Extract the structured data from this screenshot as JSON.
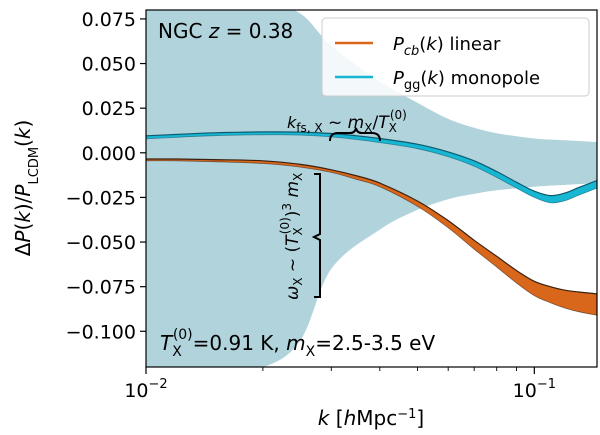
{
  "chart_data": {
    "type": "line",
    "x_scale": "log",
    "xlim": [
      0.01,
      0.145
    ],
    "ylim": [
      -0.12,
      0.08
    ],
    "xlabel_html": "k  [hMpc⁻¹]",
    "ylabel_html": "ΔP(k)/P_LCDM(k)",
    "x_ticks": [
      {
        "value": 0.01,
        "label": "10",
        "exp": "−2"
      },
      {
        "value": 0.1,
        "label": "10",
        "exp": "−1"
      }
    ],
    "y_ticks": [
      {
        "value": 0.075,
        "label": "0.075"
      },
      {
        "value": 0.05,
        "label": "0.050"
      },
      {
        "value": 0.025,
        "label": "0.025"
      },
      {
        "value": 0.0,
        "label": "0.000"
      },
      {
        "value": -0.025,
        "label": "−0.025"
      },
      {
        "value": -0.05,
        "label": "−0.050"
      },
      {
        "value": -0.075,
        "label": "−0.075"
      },
      {
        "value": -0.1,
        "label": "−0.100"
      }
    ],
    "band": {
      "color": "#b0d3dc",
      "x": [
        0.01,
        0.012,
        0.015,
        0.02,
        0.025,
        0.03,
        0.04,
        0.05,
        0.06,
        0.07,
        0.08,
        0.1,
        0.12,
        0.145
      ],
      "upper": [
        0.085,
        0.085,
        0.085,
        0.085,
        0.078,
        0.06,
        0.04,
        0.028,
        0.019,
        0.014,
        0.011,
        0.008,
        0.007,
        0.006
      ],
      "lower": [
        -0.12,
        -0.12,
        -0.12,
        -0.12,
        -0.105,
        -0.065,
        -0.043,
        -0.032,
        -0.026,
        -0.023,
        -0.021,
        -0.019,
        -0.018,
        -0.017
      ]
    },
    "series": [
      {
        "name": "P_cb(k) linear",
        "color": "#d9671b",
        "edge_color": "#3a2210",
        "x": [
          0.01,
          0.012,
          0.015,
          0.02,
          0.025,
          0.03,
          0.035,
          0.04,
          0.05,
          0.06,
          0.07,
          0.08,
          0.09,
          0.1,
          0.11,
          0.12,
          0.13,
          0.145
        ],
        "upper": [
          -0.0035,
          -0.0035,
          -0.0038,
          -0.0045,
          -0.0065,
          -0.0095,
          -0.013,
          -0.017,
          -0.027,
          -0.038,
          -0.049,
          -0.058,
          -0.066,
          -0.072,
          -0.075,
          -0.077,
          -0.078,
          -0.079
        ],
        "lower": [
          -0.0045,
          -0.0045,
          -0.005,
          -0.006,
          -0.008,
          -0.011,
          -0.015,
          -0.019,
          -0.03,
          -0.042,
          -0.054,
          -0.064,
          -0.073,
          -0.08,
          -0.084,
          -0.087,
          -0.089,
          -0.091
        ]
      },
      {
        "name": "P_gg(k) monopole",
        "color": "#17b6d2",
        "edge_color": "#0f5a6e",
        "x": [
          0.01,
          0.012,
          0.015,
          0.02,
          0.025,
          0.03,
          0.035,
          0.04,
          0.05,
          0.06,
          0.07,
          0.08,
          0.09,
          0.1,
          0.11,
          0.12,
          0.13,
          0.145
        ],
        "upper": [
          0.0095,
          0.0103,
          0.0112,
          0.0117,
          0.0116,
          0.0108,
          0.0095,
          0.008,
          0.0048,
          0.0005,
          -0.0045,
          -0.0105,
          -0.0165,
          -0.0215,
          -0.024,
          -0.0225,
          -0.0195,
          -0.0155
        ],
        "lower": [
          0.0078,
          0.0087,
          0.0096,
          0.0101,
          0.0099,
          0.0089,
          0.0074,
          0.0057,
          0.0023,
          -0.0022,
          -0.0075,
          -0.0138,
          -0.0198,
          -0.025,
          -0.028,
          -0.0268,
          -0.0238,
          -0.0198
        ]
      }
    ],
    "legend": {
      "placement": "top-right",
      "items": [
        {
          "label": "P_cb(k) linear",
          "color": "#d9671b"
        },
        {
          "label": "P_gg(k) monopole",
          "color": "#17b6d2"
        }
      ]
    },
    "annotations": {
      "top_left": "NGC z = 0.38",
      "bottom": "T_X^(0)=0.91 K, m_X=2.5-3.5 eV",
      "kfs": "k_fs,X ~ m_X/T_X^(0)",
      "omega": "ω_X ~ (T_X^(0))³ m_X"
    }
  }
}
